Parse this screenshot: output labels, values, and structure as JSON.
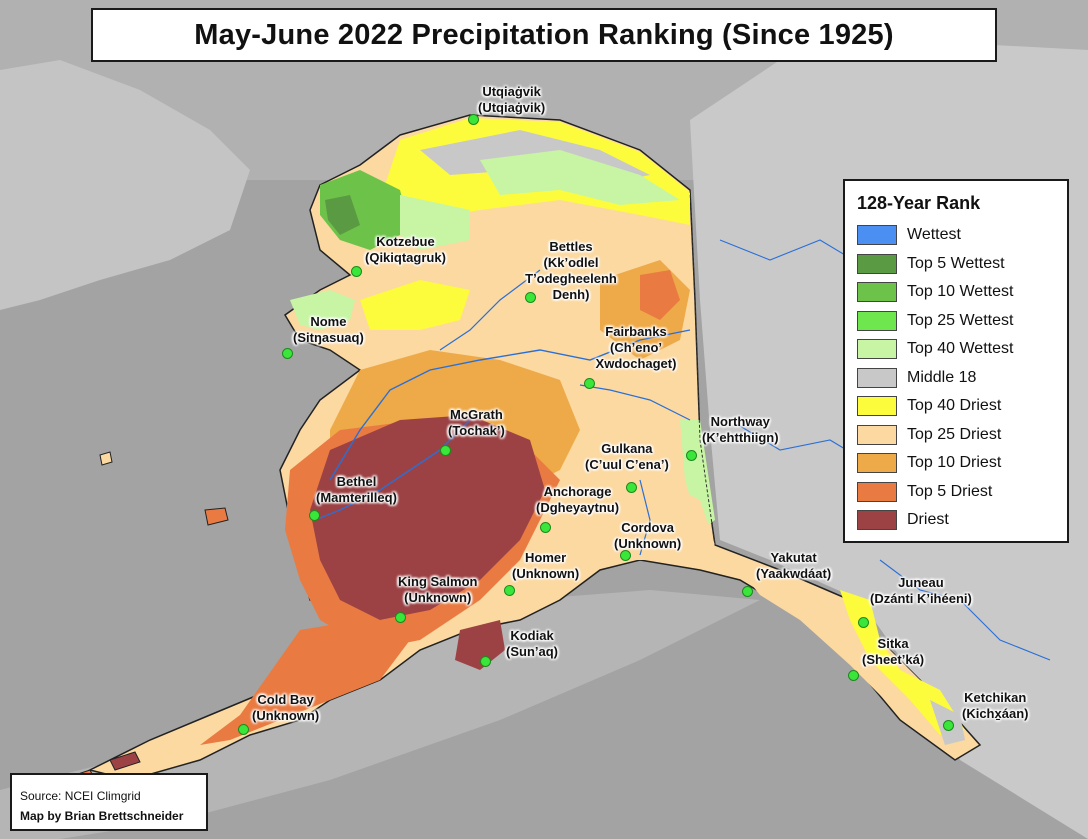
{
  "title": "May-June 2022 Precipitation Ranking (Since 1925)",
  "legend": {
    "title": "128-Year Rank",
    "items": [
      {
        "label": "Wettest",
        "color": "#4b8ff2"
      },
      {
        "label": "Top 5 Wettest",
        "color": "#5a9a42"
      },
      {
        "label": "Top 10 Wettest",
        "color": "#6dc24a"
      },
      {
        "label": "Top 25 Wettest",
        "color": "#6ee64d"
      },
      {
        "label": "Top 40 Wettest",
        "color": "#c7f5a4"
      },
      {
        "label": "Middle 18",
        "color": "#c8c8c8"
      },
      {
        "label": "Top 40 Driest",
        "color": "#fcfc3c"
      },
      {
        "label": "Top 25 Driest",
        "color": "#fbd9a1"
      },
      {
        "label": "Top 10 Driest",
        "color": "#eeaa48"
      },
      {
        "label": "Top 5 Driest",
        "color": "#e97b42"
      },
      {
        "label": "Driest",
        "color": "#9c4244"
      }
    ]
  },
  "cities": [
    {
      "name": "Utqiaġvik",
      "native": "(Utqiaġvik)"
    },
    {
      "name": "Kotzebue",
      "native": "(Qikiqtagruk)"
    },
    {
      "name": "Bettles",
      "native": "(Kk’odlel T’odegheelenh Denh)"
    },
    {
      "name": "Nome",
      "native": "(Sitŋasuaq)"
    },
    {
      "name": "Fairbanks",
      "native": "(Ch’eno’ Xwdochaget)"
    },
    {
      "name": "McGrath",
      "native": "(Tochak’)"
    },
    {
      "name": "Northway",
      "native": "(K’ehtthiign)"
    },
    {
      "name": "Gulkana",
      "native": "(C’uul C’ena’)"
    },
    {
      "name": "Bethel",
      "native": "(Mamterilleq)"
    },
    {
      "name": "Anchorage",
      "native": "(Dgheyaytnu)"
    },
    {
      "name": "Cordova",
      "native": "(Unknown)"
    },
    {
      "name": "Homer",
      "native": "(Unknown)"
    },
    {
      "name": "King Salmon",
      "native": "(Unknown)"
    },
    {
      "name": "Yakutat",
      "native": "(Yaakwdáat)"
    },
    {
      "name": "Juneau",
      "native": "(Dzánti K’ihéeni)"
    },
    {
      "name": "Kodiak",
      "native": "(Sun’aq)"
    },
    {
      "name": "Sitka",
      "native": "(Sheet’ká)"
    },
    {
      "name": "Cold Bay",
      "native": "(Unknown)"
    },
    {
      "name": "Ketchikan",
      "native": "(Kichx̱áan)"
    }
  ],
  "credits": {
    "source": "Source: NCEI Climgrid",
    "author": "Map by Brian Brettschneider"
  }
}
